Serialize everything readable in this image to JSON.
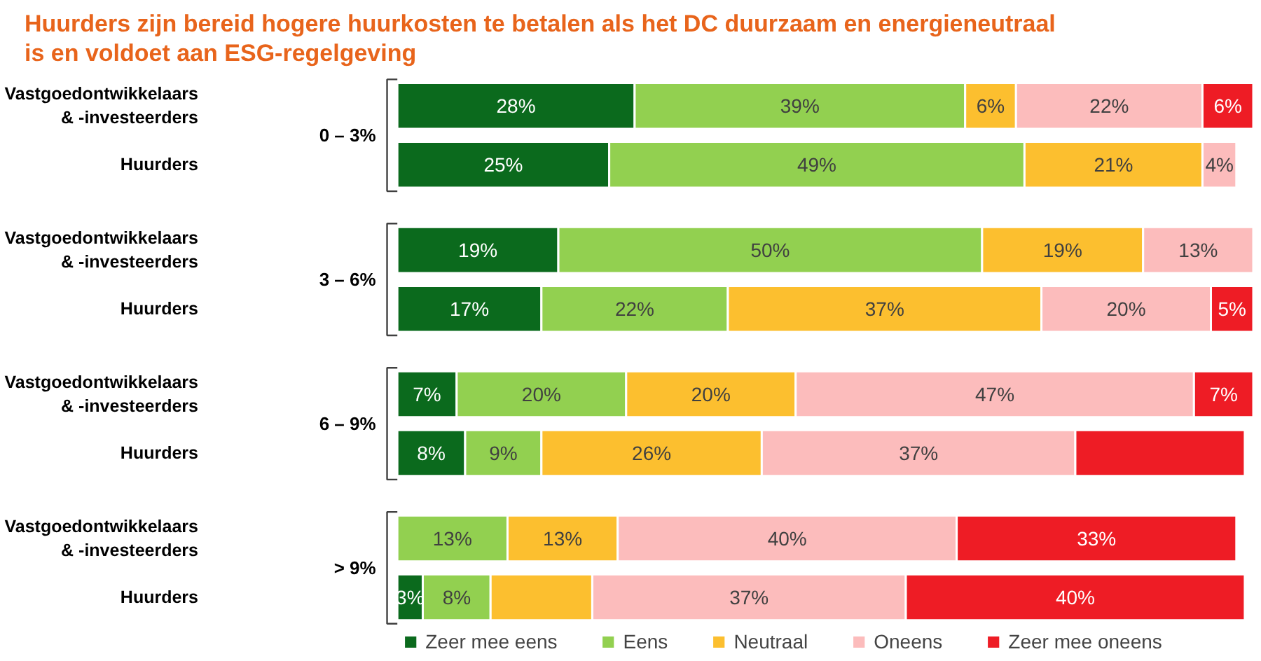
{
  "chart_data": {
    "type": "bar",
    "orientation": "horizontal",
    "stacked": true,
    "title": "Huurders zijn bereid hogere huurkosten te betalen als het DC duurzaam en energieneutraal\nis en voldoet aan ESG-regelgeving",
    "categories": [
      "Vastgoedontwikkelaars\n& -investeerders",
      "Huurders",
      "Vastgoedontwikkelaars\n& -investeerders",
      "Huurders",
      "Vastgoedontwikkelaars\n& -investeerders",
      "Huurders",
      "Vastgoedontwikkelaars\n& -investeerders",
      "Huurders"
    ],
    "annotations": [
      "0 – 3%",
      "3 – 6%",
      "6 – 9%",
      "> 9%"
    ],
    "series": [
      {
        "name": "Zeer mee eens",
        "color": "#0b6a1d",
        "values": [
          28,
          25,
          19,
          17,
          7,
          8,
          null,
          3
        ],
        "value_labels": [
          "28%",
          "25%",
          "19%",
          "17%",
          "7%",
          "8%",
          null,
          "3%"
        ]
      },
      {
        "name": "Eens",
        "color": "#92d050",
        "values": [
          39,
          49,
          50,
          22,
          20,
          9,
          13,
          8
        ],
        "value_labels": [
          "39%",
          "49%",
          "50%",
          "22%",
          "20%",
          "9%",
          "13%",
          "8%"
        ]
      },
      {
        "name": "Neutraal",
        "color": "#fcbf2f",
        "values": [
          6,
          21,
          19,
          37,
          20,
          26,
          13,
          12
        ],
        "value_labels": [
          "6%",
          "21%",
          "19%",
          "37%",
          "20%",
          "26%",
          "13%",
          null
        ]
      },
      {
        "name": "Oneens",
        "color": "#fcbcbc",
        "values": [
          22,
          4,
          13,
          20,
          47,
          37,
          40,
          37
        ],
        "value_labels": [
          "22%",
          "4%",
          "13%",
          "20%",
          "47%",
          "37%",
          "40%",
          "37%"
        ]
      },
      {
        "name": "Zeer mee oneens",
        "color": "#ee1c25",
        "values": [
          6,
          null,
          null,
          5,
          7,
          20,
          33,
          40
        ],
        "value_labels": [
          "6%",
          null,
          null,
          "5%",
          "7%",
          null,
          "33%",
          "40%"
        ]
      }
    ],
    "xlim": [
      0,
      101
    ],
    "tick_labels": false,
    "grid": false,
    "legend": "bottom"
  }
}
